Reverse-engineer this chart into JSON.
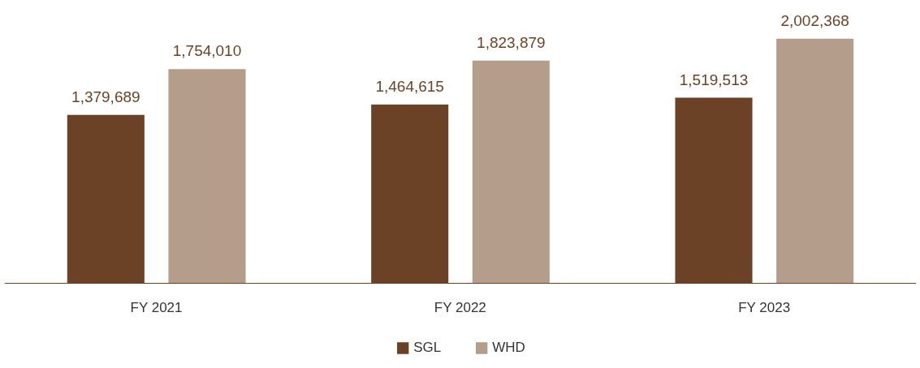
{
  "chart_data": {
    "type": "bar",
    "categories": [
      "FY 2021",
      "FY 2022",
      "FY 2023"
    ],
    "series": [
      {
        "name": "SGL",
        "color": "#6b4226",
        "values": [
          1379689,
          1464615,
          1519513
        ],
        "value_labels": [
          "1,379,689",
          "1,464,615",
          "1,519,513"
        ]
      },
      {
        "name": "WHD",
        "color": "#b59d8b",
        "values": [
          1754010,
          1823879,
          2002368
        ],
        "value_labels": [
          "1,754,010",
          "1,823,879",
          "2,002,368"
        ]
      }
    ],
    "legend": "bottom",
    "grid": false
  }
}
